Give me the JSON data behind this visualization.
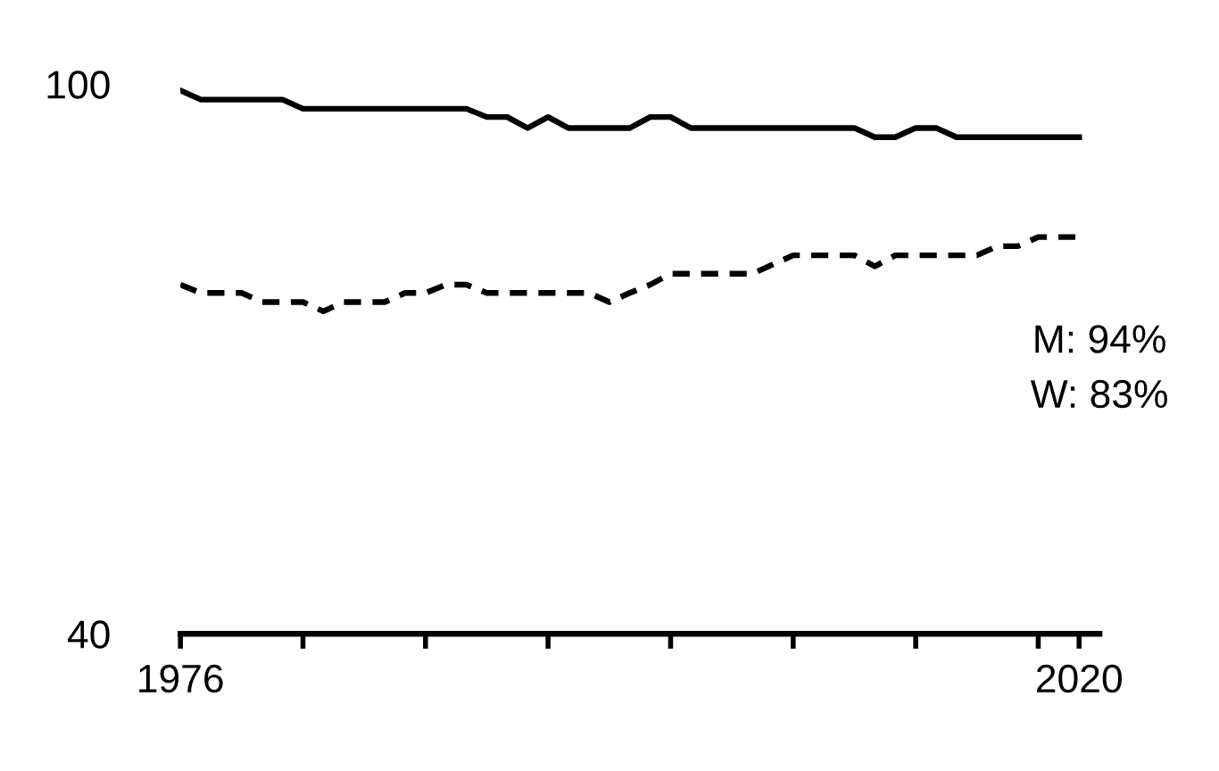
{
  "chart_data": {
    "type": "line",
    "x": [
      1976,
      1977,
      1978,
      1979,
      1980,
      1981,
      1982,
      1983,
      1984,
      1985,
      1986,
      1987,
      1988,
      1989,
      1990,
      1991,
      1992,
      1993,
      1994,
      1995,
      1996,
      1997,
      1998,
      1999,
      2000,
      2001,
      2002,
      2003,
      2004,
      2005,
      2006,
      2007,
      2008,
      2009,
      2010,
      2011,
      2012,
      2013,
      2014,
      2015,
      2016,
      2017,
      2018,
      2019,
      2020
    ],
    "series": [
      {
        "color": "#000000",
        "line_style": "solid",
        "values": [
          99.3,
          98.3,
          98.3,
          98.3,
          98.3,
          98.3,
          97.3,
          97.3,
          97.3,
          97.3,
          97.3,
          97.3,
          97.3,
          97.3,
          97.3,
          96.4,
          96.4,
          95.2,
          96.4,
          95.2,
          95.2,
          95.2,
          95.2,
          96.4,
          96.4,
          95.2,
          95.2,
          95.2,
          95.2,
          95.2,
          95.2,
          95.2,
          95.2,
          95.2,
          94.2,
          94.2,
          95.2,
          95.2,
          94.2,
          94.2,
          94.2,
          94.2,
          94.2,
          94.2,
          94.2
        ]
      },
      {
        "color": "#000000",
        "line_style": "dashed",
        "values": [
          78.1,
          77.2,
          77.2,
          77.2,
          76.2,
          76.2,
          76.2,
          75.2,
          76.2,
          76.2,
          76.2,
          77.2,
          77.2,
          78.1,
          78.1,
          77.2,
          77.2,
          77.2,
          77.2,
          77.2,
          77.2,
          76.2,
          77.2,
          78.1,
          79.3,
          79.3,
          79.3,
          79.3,
          79.3,
          80.3,
          81.3,
          81.3,
          81.3,
          81.3,
          80.1,
          81.3,
          81.3,
          81.3,
          81.3,
          81.3,
          82.3,
          82.3,
          83.3,
          83.3,
          83.3
        ]
      }
    ],
    "xlim": [
      1976,
      2021
    ],
    "xticks": [
      {
        "value": 1976,
        "label": "1976"
      },
      {
        "value": 1982,
        "label": null
      },
      {
        "value": 1988,
        "label": null
      },
      {
        "value": 1994,
        "label": null
      },
      {
        "value": 2000,
        "label": null
      },
      {
        "value": 2006,
        "label": null
      },
      {
        "value": 2012,
        "label": null
      },
      {
        "value": 2018,
        "label": null
      },
      {
        "value": 2020,
        "label": "2020"
      }
    ],
    "ylim": [
      40,
      100
    ],
    "yticks": [
      40,
      100
    ],
    "annotations": [
      "M: 94%",
      "W: 83%"
    ],
    "grid": false,
    "legend": false
  }
}
